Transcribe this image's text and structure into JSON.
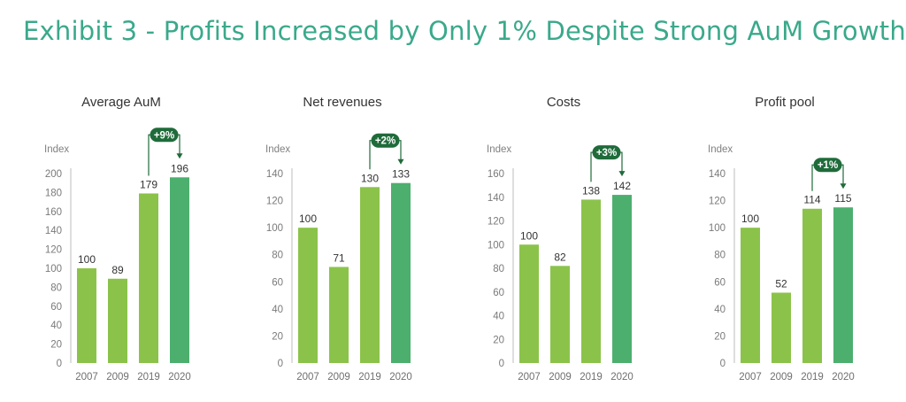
{
  "title": "Exhibit 3 - Profits Increased by Only 1% Despite Strong AuM Growth",
  "colors": {
    "title": "#3aa98b",
    "bar_light": "#8bc34a",
    "bar_dark": "#4caf6e",
    "badge": "#1f6b3a"
  },
  "chart_data": [
    {
      "type": "bar",
      "title": "Average AuM",
      "ylabel": "Index",
      "categories": [
        "2007",
        "2009",
        "2019",
        "2020"
      ],
      "values": [
        100,
        89,
        179,
        196
      ],
      "ylim": [
        0,
        200
      ],
      "yticks": [
        0,
        20,
        40,
        60,
        80,
        100,
        120,
        140,
        160,
        180,
        200
      ],
      "annotation": "+9%"
    },
    {
      "type": "bar",
      "title": "Net revenues",
      "ylabel": "Index",
      "categories": [
        "2007",
        "2009",
        "2019",
        "2020"
      ],
      "values": [
        100,
        71,
        130,
        133
      ],
      "ylim": [
        0,
        140
      ],
      "yticks": [
        0,
        20,
        40,
        60,
        80,
        100,
        120,
        140
      ],
      "annotation": "+2%"
    },
    {
      "type": "bar",
      "title": "Costs",
      "ylabel": "Index",
      "categories": [
        "2007",
        "2009",
        "2019",
        "2020"
      ],
      "values": [
        100,
        82,
        138,
        142
      ],
      "ylim": [
        0,
        160
      ],
      "yticks": [
        0,
        20,
        40,
        60,
        80,
        100,
        120,
        140,
        160
      ],
      "annotation": "+3%"
    },
    {
      "type": "bar",
      "title": "Profit pool",
      "ylabel": "Index",
      "categories": [
        "2007",
        "2009",
        "2019",
        "2020"
      ],
      "values": [
        100,
        52,
        114,
        115
      ],
      "ylim": [
        0,
        140
      ],
      "yticks": [
        0,
        20,
        40,
        60,
        80,
        100,
        120,
        140
      ],
      "annotation": "+1%"
    }
  ]
}
